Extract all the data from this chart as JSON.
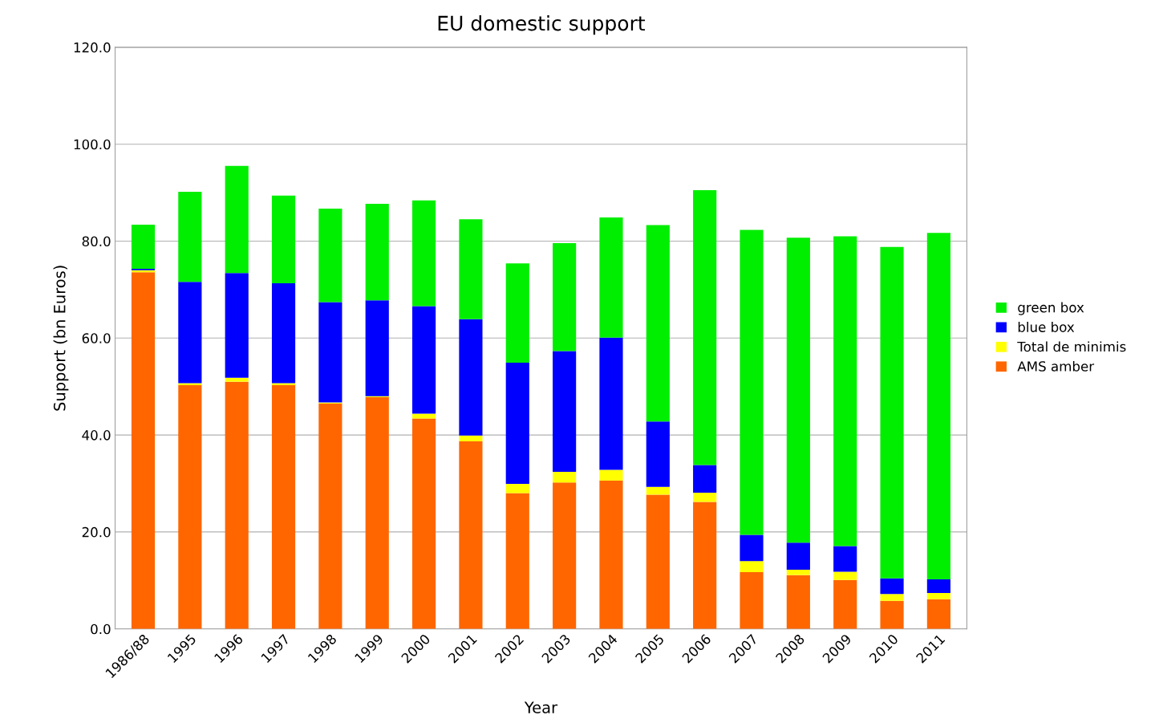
{
  "chart_data": {
    "type": "bar",
    "title": "EU domestic support",
    "xlabel": "Year",
    "ylabel": "Support (bn Euros)",
    "categories": [
      "1986/88",
      "1995",
      "1996",
      "1997",
      "1998",
      "1999",
      "2000",
      "2001",
      "2002",
      "2003",
      "2004",
      "2005",
      "2006",
      "2007",
      "2008",
      "2009",
      "2010",
      "2011"
    ],
    "stacked": true,
    "grid": "y",
    "legend": "right",
    "ylim": [
      0,
      120
    ],
    "yticks": [
      {
        "value": 0,
        "label": "0.0"
      },
      {
        "value": 20,
        "label": "20.0"
      },
      {
        "value": 40,
        "label": "40.0"
      },
      {
        "value": 60,
        "label": "60.0"
      },
      {
        "value": 80,
        "label": "80.0"
      },
      {
        "value": 100,
        "label": "100.0"
      },
      {
        "value": 120,
        "label": "120.0"
      }
    ],
    "series": [
      {
        "name": "AMS amber",
        "color": "#ff6600",
        "values": [
          73.6,
          50.3,
          51.0,
          50.3,
          46.5,
          47.8,
          43.4,
          38.7,
          28.0,
          30.2,
          30.6,
          27.7,
          26.2,
          11.7,
          11.1,
          10.1,
          5.8,
          6.1
        ]
      },
      {
        "name": "Total de minimis",
        "color": "#ffff00",
        "values": [
          0.4,
          0.4,
          0.8,
          0.4,
          0.2,
          0.2,
          1.0,
          1.2,
          1.9,
          2.2,
          2.2,
          1.6,
          1.9,
          2.3,
          1.1,
          1.7,
          1.4,
          1.3
        ]
      },
      {
        "name": "blue box",
        "color": "#0000ff",
        "values": [
          0.3,
          20.9,
          21.6,
          20.6,
          20.7,
          19.8,
          22.2,
          24.0,
          25.0,
          24.9,
          27.3,
          13.5,
          5.7,
          5.4,
          5.6,
          5.3,
          3.2,
          2.8
        ]
      },
      {
        "name": "green box",
        "color": "#00ee00",
        "values": [
          9.1,
          18.6,
          22.1,
          18.1,
          19.3,
          19.9,
          21.8,
          20.6,
          20.5,
          22.3,
          24.8,
          40.5,
          56.7,
          62.9,
          62.9,
          63.9,
          68.4,
          71.5
        ]
      }
    ]
  }
}
